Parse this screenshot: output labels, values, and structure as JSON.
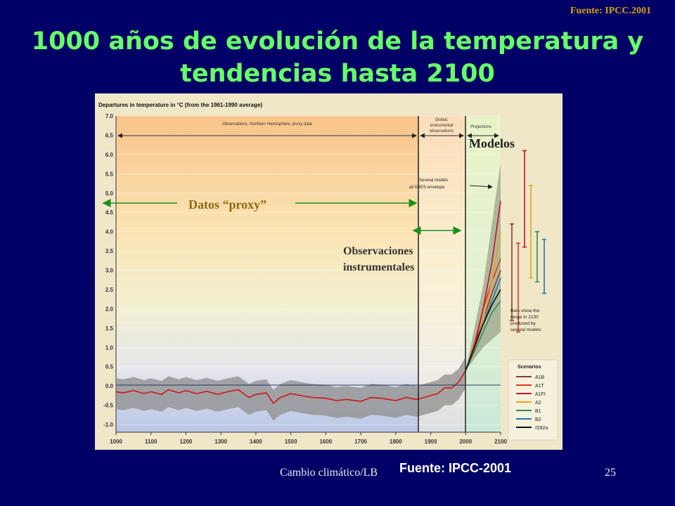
{
  "slide": {
    "source_top": "Fuente: IPCC.2001",
    "title_line1": "1000 años de evolución de la temperatura y",
    "title_line2": "tendencias hasta 2100",
    "footer_left": "Cambio climático/LB",
    "footer_source": "Fuente: IPCC-2001",
    "page_number": "25"
  },
  "colors": {
    "background": "#000066",
    "title": "#66ff66",
    "source_top": "#d4a017",
    "arrow_green": "#1a8f1a",
    "proxy_label": "#8b6914",
    "instrumental_label": "#333333",
    "models_label": "#222222"
  },
  "annotations": {
    "proxy": "Datos “proxy”",
    "instrumental_1": "Observaciones",
    "instrumental_2": "instrumentales",
    "models": "Modelos"
  },
  "chart_data": {
    "type": "line",
    "title": "Departures in temperature in °C (from the 1961-1990 average)",
    "x_ticks": [
      1000,
      1100,
      1200,
      1300,
      1400,
      1500,
      1600,
      1700,
      1800,
      1900,
      2000,
      2100
    ],
    "xlim": [
      1000,
      2100
    ],
    "y_ticks": [
      "7.0",
      "6.5",
      "6.0",
      "5.5",
      "5.0",
      "4.5",
      "4.0",
      "3.5",
      "3.0",
      "2.5",
      "2.0",
      "1.5",
      "1.0",
      "0.5",
      "0.0",
      "-0.5",
      "-1.0"
    ],
    "ylim": [
      -1.2,
      7.0
    ],
    "periods": [
      {
        "label": "Observations, Northern Hemisphere, proxy data",
        "from": 1000,
        "to": 1860
      },
      {
        "label_1": "Global,",
        "label_2": "instrumental",
        "label_3": "observations",
        "from": 1860,
        "to": 2000
      },
      {
        "label": "Projections",
        "from": 2000,
        "to": 2100
      }
    ],
    "envelope_label_1": "Several models",
    "envelope_label_2": "all SRES envelope",
    "bars_note": [
      "Bars show the",
      "range in 2100",
      "produced by",
      "several models"
    ],
    "legend_title": "Scenarios",
    "proxy_series": {
      "x": [
        1000,
        1020,
        1050,
        1080,
        1100,
        1130,
        1150,
        1180,
        1200,
        1230,
        1260,
        1290,
        1320,
        1350,
        1380,
        1400,
        1430,
        1450,
        1470,
        1500,
        1530,
        1560,
        1600,
        1630,
        1660,
        1700,
        1730,
        1760,
        1800,
        1830,
        1860,
        1880,
        1900,
        1920,
        1940,
        1960,
        1980,
        2000
      ],
      "y": [
        -0.15,
        -0.18,
        -0.12,
        -0.2,
        -0.15,
        -0.22,
        -0.1,
        -0.18,
        -0.12,
        -0.2,
        -0.14,
        -0.22,
        -0.15,
        -0.1,
        -0.3,
        -0.22,
        -0.18,
        -0.45,
        -0.3,
        -0.2,
        -0.25,
        -0.3,
        -0.32,
        -0.38,
        -0.35,
        -0.4,
        -0.3,
        -0.32,
        -0.38,
        -0.3,
        -0.35,
        -0.3,
        -0.25,
        -0.2,
        -0.05,
        -0.05,
        0.1,
        0.4
      ]
    },
    "series": [
      {
        "name": "A1B",
        "color": "#8b3a2a",
        "x": [
          2000,
          2025,
          2050,
          2075,
          2100
        ],
        "y": [
          0.4,
          1.0,
          1.7,
          2.4,
          3.0
        ]
      },
      {
        "name": "A1T",
        "color": "#e8331c",
        "x": [
          2000,
          2025,
          2050,
          2075,
          2100
        ],
        "y": [
          0.4,
          1.1,
          2.0,
          2.7,
          3.3
        ]
      },
      {
        "name": "A1FI",
        "color": "#c8102e",
        "x": [
          2000,
          2025,
          2050,
          2075,
          2100
        ],
        "y": [
          0.4,
          1.0,
          2.0,
          3.2,
          4.8
        ]
      },
      {
        "name": "A2",
        "color": "#e8a317",
        "x": [
          2000,
          2025,
          2050,
          2075,
          2100
        ],
        "y": [
          0.4,
          0.9,
          1.7,
          2.7,
          4.0
        ]
      },
      {
        "name": "B1",
        "color": "#2e8b57",
        "x": [
          2000,
          2025,
          2050,
          2075,
          2100
        ],
        "y": [
          0.4,
          0.9,
          1.4,
          1.9,
          2.2
        ]
      },
      {
        "name": "B2",
        "color": "#1f77b4",
        "x": [
          2000,
          2025,
          2050,
          2075,
          2100
        ],
        "y": [
          0.4,
          1.0,
          1.6,
          2.2,
          2.8
        ]
      },
      {
        "name": "IS92a",
        "color": "#111111",
        "x": [
          2000,
          2025,
          2050,
          2075,
          2100
        ],
        "y": [
          0.4,
          1.0,
          1.6,
          2.1,
          2.5
        ]
      }
    ],
    "envelope": {
      "x": [
        2000,
        2050,
        2100
      ],
      "low": [
        0.4,
        1.0,
        1.4
      ],
      "high": [
        0.4,
        2.6,
        5.8
      ]
    },
    "range_bars": [
      {
        "name": "A1B",
        "color": "#8b3a2a",
        "low": 1.7,
        "high": 4.2
      },
      {
        "name": "A1T",
        "color": "#e8331c",
        "low": 1.4,
        "high": 3.7
      },
      {
        "name": "A1FI",
        "color": "#c8102e",
        "low": 3.6,
        "high": 6.1
      },
      {
        "name": "A2",
        "color": "#e8a317",
        "low": 2.8,
        "high": 5.2
      },
      {
        "name": "B1",
        "color": "#2e8b57",
        "low": 2.7,
        "high": 4.0
      },
      {
        "name": "B2",
        "color": "#1f77b4",
        "low": 2.4,
        "high": 3.8
      }
    ]
  }
}
